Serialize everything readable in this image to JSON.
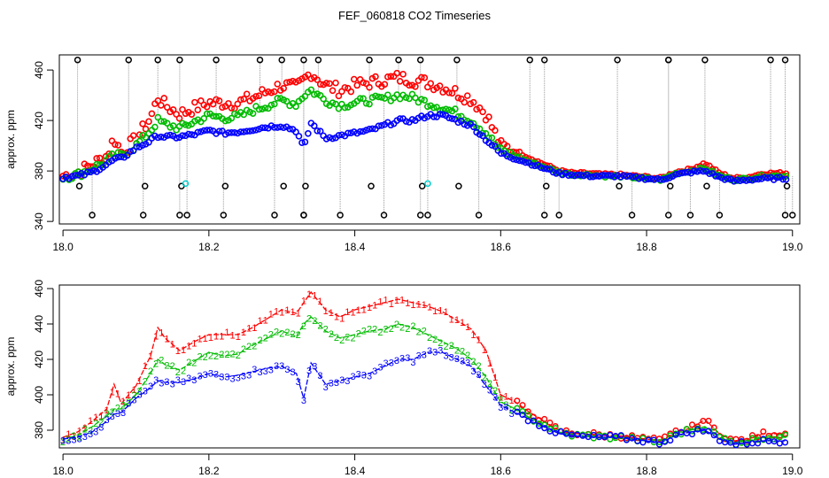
{
  "title": "FEF_060818  CO2 Timeseries",
  "colors": {
    "series_1": "#ff0000",
    "series_2": "#00bb00",
    "series_3": "#0000ff",
    "raw": "#000000",
    "raw_special": "#00cccc",
    "raw_line": "#999999"
  },
  "chart_data": [
    {
      "type": "scatter",
      "ylabel": "approx. ppm",
      "xlim": [
        17.995,
        19.01
      ],
      "ylim": [
        338,
        472
      ],
      "xticks": [
        "18.0",
        "18.2",
        "18.4",
        "18.6",
        "18.8",
        "19.0"
      ],
      "yticks": [
        "340",
        "380",
        "420",
        "460"
      ],
      "note": "raw samples (black circles, grey connecting lines) plus smoothed channels (red, green, blue circles)",
      "raw_spike_x": [
        18.02,
        18.04,
        18.09,
        18.11,
        18.13,
        18.16,
        18.16,
        18.17,
        18.21,
        18.22,
        18.27,
        18.29,
        18.3,
        18.33,
        18.33,
        18.33,
        18.35,
        18.38,
        18.42,
        18.44,
        18.46,
        18.49,
        18.49,
        18.5,
        18.54,
        18.57,
        18.64,
        18.66,
        18.66,
        18.68,
        18.76,
        18.78,
        18.83,
        18.83,
        18.83,
        18.86,
        18.88,
        18.9,
        18.97,
        18.99,
        18.99,
        19.0
      ]
    },
    {
      "type": "line",
      "ylabel": "approx. ppm",
      "xlim": [
        17.995,
        19.01
      ],
      "ylim": [
        370,
        462
      ],
      "xticks": [
        "18.0",
        "18.2",
        "18.4",
        "18.6",
        "18.8",
        "19.0"
      ],
      "yticks": [
        "380",
        "400",
        "420",
        "440",
        "460"
      ],
      "series": [
        {
          "name": "1",
          "label": "1"
        },
        {
          "name": "2",
          "label": "2"
        },
        {
          "name": "3",
          "label": "3"
        }
      ],
      "x": [
        18.0,
        18.02,
        18.04,
        18.06,
        18.07,
        18.08,
        18.1,
        18.12,
        18.13,
        18.14,
        18.16,
        18.18,
        18.2,
        18.22,
        18.24,
        18.26,
        18.28,
        18.3,
        18.32,
        18.33,
        18.34,
        18.36,
        18.38,
        18.4,
        18.42,
        18.44,
        18.46,
        18.48,
        18.5,
        18.52,
        18.54,
        18.56,
        18.58,
        18.6,
        18.62,
        18.64,
        18.66,
        18.68,
        18.7,
        18.72,
        18.74,
        18.76,
        18.78,
        18.8,
        18.82,
        18.84,
        18.86,
        18.88,
        18.9,
        18.92,
        18.94,
        18.96,
        18.98,
        18.99
      ],
      "y1": [
        376,
        379,
        385,
        392,
        406,
        395,
        405,
        422,
        438,
        432,
        425,
        430,
        434,
        434,
        434,
        438,
        443,
        448,
        446,
        452,
        458,
        448,
        444,
        448,
        450,
        452,
        454,
        452,
        450,
        447,
        442,
        437,
        425,
        400,
        396,
        390,
        385,
        380,
        378,
        378,
        377,
        377,
        376,
        375,
        374,
        379,
        381,
        386,
        378,
        374,
        375,
        378,
        378,
        378
      ],
      "y2": [
        375,
        377,
        382,
        388,
        392,
        392,
        400,
        412,
        420,
        417,
        414,
        419,
        424,
        422,
        423,
        428,
        432,
        436,
        433,
        440,
        444,
        436,
        432,
        434,
        436,
        437,
        440,
        438,
        434,
        430,
        426,
        420,
        410,
        396,
        392,
        387,
        383,
        379,
        377,
        377,
        376,
        376,
        375,
        374,
        373,
        378,
        380,
        382,
        376,
        373,
        374,
        376,
        376,
        376
      ],
      "y3": [
        375,
        376,
        379,
        385,
        389,
        390,
        398,
        404,
        408,
        407,
        407,
        409,
        412,
        410,
        411,
        413,
        415,
        416,
        412,
        398,
        418,
        406,
        408,
        410,
        412,
        416,
        420,
        420,
        424,
        424,
        420,
        416,
        405,
        394,
        390,
        386,
        382,
        378,
        377,
        376,
        376,
        376,
        375,
        374,
        373,
        377,
        379,
        380,
        375,
        372,
        373,
        374,
        374,
        374
      ]
    }
  ]
}
